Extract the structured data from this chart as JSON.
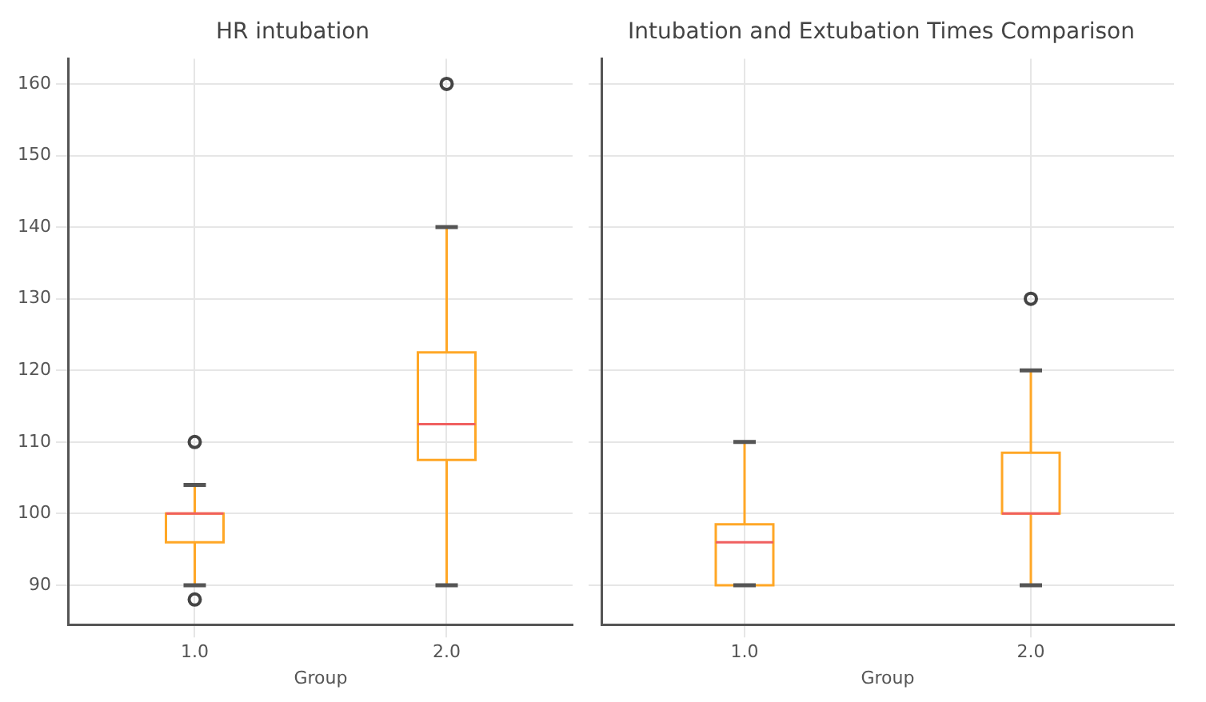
{
  "chart_data": [
    {
      "type": "box",
      "title": "HR intubation",
      "xlabel": "Group",
      "categories": [
        "1.0",
        "2.0"
      ],
      "ylim": [
        84.5,
        163.5
      ],
      "yticks": [
        90,
        100,
        110,
        120,
        130,
        140,
        150,
        160
      ],
      "grid": true,
      "series": [
        {
          "color": "#ffa726",
          "boxes": [
            {
              "low": 90,
              "q1": 96,
              "median": 100,
              "q3": 100,
              "high": 104,
              "outliers": [
                110,
                88
              ]
            },
            {
              "low": 90,
              "q1": 107.5,
              "median": 112.5,
              "q3": 122.5,
              "high": 140,
              "outliers": [
                160
              ]
            }
          ]
        }
      ]
    },
    {
      "type": "box",
      "title": "Intubation and Extubation Times Comparison",
      "xlabel": "Group",
      "categories": [
        "1.0",
        "2.0"
      ],
      "ylim": [
        84.5,
        163.5
      ],
      "yticks": [
        90,
        100,
        110,
        120,
        130,
        140,
        150,
        160
      ],
      "grid": true,
      "tick_labels": "x",
      "series": [
        {
          "color": "#ffa726",
          "boxes": [
            {
              "low": 90,
              "q1": 90,
              "median": 96,
              "q3": 98.5,
              "high": 110
            },
            {
              "low": 90,
              "q1": 100,
              "median": 100,
              "q3": 108.5,
              "high": 120,
              "outliers": [
                130
              ]
            }
          ]
        }
      ]
    }
  ]
}
